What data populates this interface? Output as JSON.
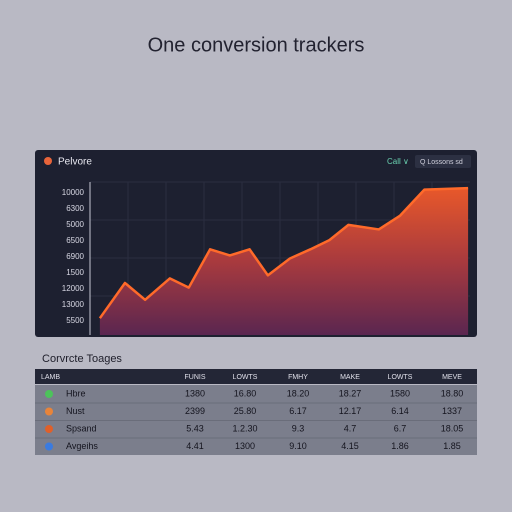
{
  "header": {
    "title": "One conversion trackers"
  },
  "panel": {
    "logo": "Pelvore",
    "dropdown": "Call ∨",
    "search": "Q Lossons sd"
  },
  "chart_data": {
    "type": "area",
    "y_labels": [
      "10000",
      "6300",
      "5000",
      "6500",
      "6900",
      "1500",
      "12000",
      "13000",
      "5500"
    ],
    "x": [
      2.6,
      9.2,
      14.5,
      21,
      26,
      31.6,
      36.8,
      42,
      46.8,
      52.6,
      58,
      63,
      68,
      76,
      81.6,
      88,
      99.5
    ],
    "series": [
      {
        "color": "#ff6a2a",
        "values": [
          11,
          34,
          23,
          37,
          31,
          56,
          52,
          56,
          39,
          50,
          56,
          62,
          72,
          69,
          78,
          95,
          96
        ]
      }
    ],
    "xlim": [
      0,
      100
    ],
    "ylim": [
      0,
      100
    ]
  },
  "table": {
    "title": "Corvrcte Toages",
    "header": [
      "LAMB",
      "FUNIS",
      "LOWTS",
      "FMHY",
      "MAKE",
      "LOWTS",
      "MEVE"
    ],
    "rows": [
      [
        "Hbre",
        "1380",
        "16.80",
        "18.20",
        "18.27",
        "1580",
        "18.80"
      ],
      [
        "Nust",
        "2399",
        "25.80",
        "6.17",
        "12.17",
        "6.14",
        "1337"
      ],
      [
        "Spsand",
        "5.43",
        "1.2.30",
        "9.3",
        "4.7",
        "6.7",
        "18.05"
      ],
      [
        "Avgeihs",
        "4.41",
        "1300",
        "9.10",
        "4.15",
        "1.86",
        "1.85"
      ]
    ],
    "icon_colors": [
      "#4cc35a",
      "#e8843a",
      "#e0602a",
      "#3a7be0"
    ]
  }
}
